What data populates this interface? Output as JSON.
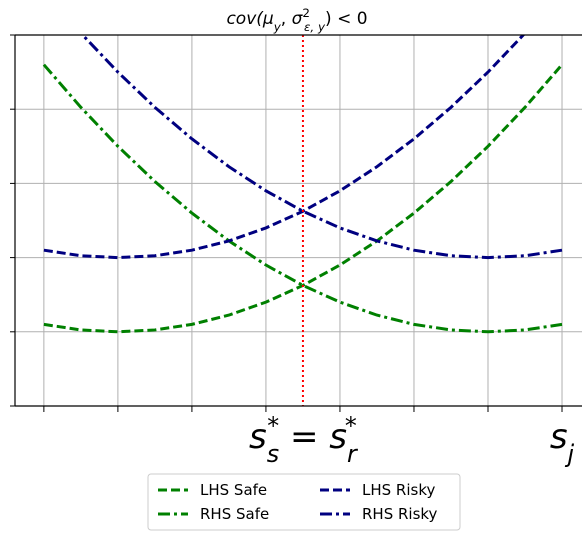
{
  "chart_data": {
    "type": "line",
    "title": {
      "parts": [
        "cov(",
        "μ",
        "y",
        ", ",
        "σ",
        "2",
        "ε, y",
        ") < 0"
      ],
      "styles": [
        "italic",
        "italic",
        "sub",
        "normal",
        "italic",
        "sup",
        "subback",
        "normal"
      ]
    },
    "x": [
      0,
      0.5,
      1,
      1.5,
      2,
      2.5,
      3,
      3.5,
      4,
      4.5,
      5,
      5.5,
      6,
      6.5,
      7
    ],
    "series": [
      {
        "name": "LHS Safe",
        "color": "#008000",
        "linestyle": "dashed",
        "values": [
          1.1,
          1.025,
          1,
          1.025,
          1.1,
          1.225,
          1.4,
          1.625,
          1.9,
          2.225,
          2.6,
          3.025,
          3.5,
          4.025,
          4.6
        ]
      },
      {
        "name": "RHS Safe",
        "color": "#008000",
        "linestyle": "dashdot",
        "values": [
          4.6,
          4.025,
          3.5,
          3.025,
          2.6,
          2.225,
          1.9,
          1.625,
          1.4,
          1.225,
          1.1,
          1.025,
          1,
          1.025,
          1.1
        ]
      },
      {
        "name": "LHS Risky",
        "color": "#000080",
        "linestyle": "dashed",
        "values": [
          2.1,
          2.025,
          2,
          2.025,
          2.1,
          2.225,
          2.4,
          2.625,
          2.9,
          3.225,
          3.6,
          4.025,
          4.5,
          5.025,
          5.6
        ]
      },
      {
        "name": "RHS Risky",
        "color": "#000080",
        "linestyle": "dashdot",
        "values": [
          5.6,
          5.025,
          4.5,
          4.025,
          3.6,
          3.225,
          2.9,
          2.625,
          2.4,
          2.225,
          2.1,
          2.025,
          2,
          2.025,
          2.1
        ]
      }
    ],
    "vline": {
      "x": 3.5,
      "color": "#ff0000"
    },
    "annotations": [
      {
        "x": 3.5,
        "parts": [
          "s",
          "s",
          "*",
          " = ",
          "s",
          "r",
          "*"
        ],
        "styles": [
          "italic",
          "sub",
          "supback",
          "normal",
          "italic",
          "sub",
          "supback"
        ]
      },
      {
        "x": 7,
        "parts": [
          "s",
          "j"
        ],
        "styles": [
          "italic",
          "sub"
        ]
      }
    ],
    "xlim": [
      -0.39,
      7.27
    ],
    "ylim": [
      0,
      5
    ],
    "xticks": [
      0,
      1,
      2,
      3,
      4,
      5,
      6,
      7
    ],
    "yticks": [
      0,
      1,
      2,
      3,
      4,
      5
    ],
    "grid": true,
    "legend": "lower center"
  }
}
